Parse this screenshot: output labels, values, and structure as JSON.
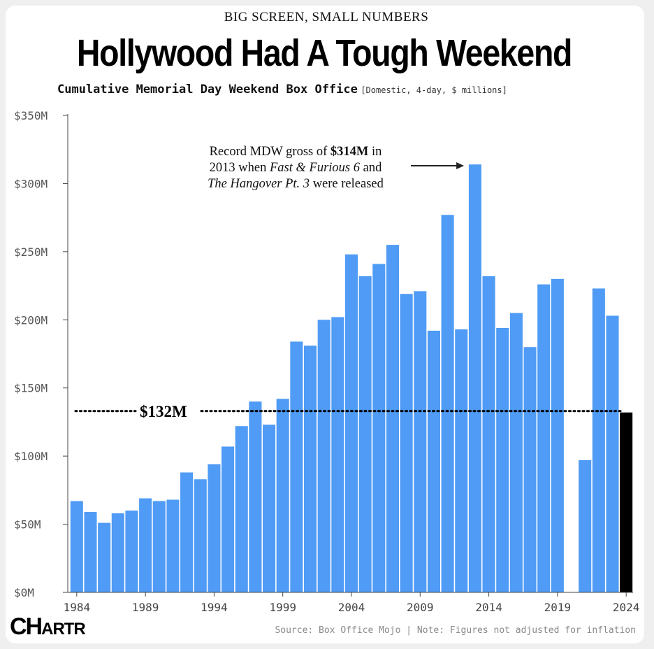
{
  "kicker": "BIG SCREEN, SMALL NUMBERS",
  "headline": "Hollywood Had A Tough Weekend",
  "subtitle": "Cumulative Memorial Day Weekend Box Office",
  "subtitle_note": "[Domestic, 4-day, $ millions]",
  "source": "Source: Box Office Mojo | Note: Figures not adjusted for inflation",
  "logo_text": "CHARTR",
  "logo_big": "CH",
  "logo_small": "ARTR",
  "colors": {
    "bar": "#4f9bf5",
    "highlight": "#000000",
    "axis": "#444444",
    "text": "#111111"
  },
  "chart_data": {
    "type": "bar",
    "title": "Cumulative Memorial Day Weekend Box Office",
    "xlabel": "",
    "ylabel": "",
    "ylim": [
      0,
      350
    ],
    "yticks": [
      0,
      50,
      100,
      150,
      200,
      250,
      300,
      350
    ],
    "ytick_labels": [
      "$0M",
      "$50M",
      "$100M",
      "$150M",
      "$200M",
      "$250M",
      "$300M",
      "$350M"
    ],
    "xtick_labels": [
      "1984",
      "1989",
      "1994",
      "1999",
      "2004",
      "2009",
      "2014",
      "2019",
      "2024"
    ],
    "categories": [
      "1984",
      "1985",
      "1986",
      "1987",
      "1988",
      "1989",
      "1990",
      "1991",
      "1992",
      "1993",
      "1994",
      "1995",
      "1996",
      "1997",
      "1998",
      "1999",
      "2000",
      "2001",
      "2002",
      "2003",
      "2004",
      "2005",
      "2006",
      "2007",
      "2008",
      "2009",
      "2010",
      "2011",
      "2012",
      "2013",
      "2014",
      "2015",
      "2016",
      "2017",
      "2018",
      "2019",
      "2020",
      "2021",
      "2022",
      "2023",
      "2024"
    ],
    "values": [
      67,
      59,
      51,
      58,
      60,
      69,
      67,
      68,
      88,
      83,
      94,
      107,
      122,
      140,
      123,
      142,
      184,
      181,
      200,
      202,
      248,
      232,
      241,
      255,
      219,
      221,
      192,
      277,
      193,
      314,
      232,
      194,
      205,
      180,
      226,
      230,
      0,
      97,
      223,
      203,
      132
    ],
    "highlight_category": "2024",
    "reference_line": {
      "value": 132,
      "label": "$132M"
    },
    "annotation": {
      "line1_pre": "Record MDW gross of ",
      "line1_bold": "$314M",
      "line1_post": " in",
      "line2_pre": "2013 when ",
      "line2_italic": "Fast & Furious 6",
      "line2_post": " and",
      "line3_italic": "The Hangover Pt. 3",
      "line3_post": " were released",
      "target": "2013"
    }
  }
}
